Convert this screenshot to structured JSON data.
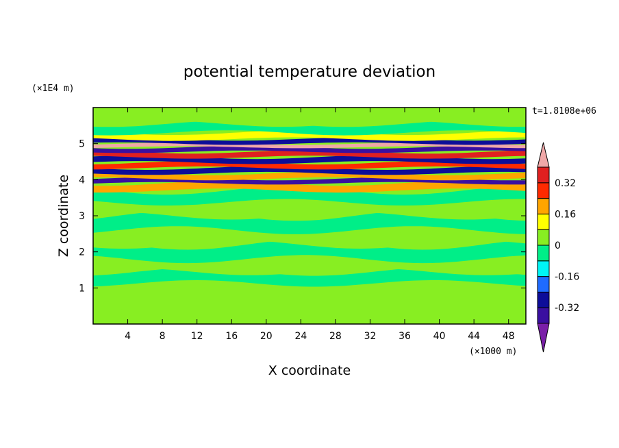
{
  "chart_data": {
    "type": "heatmap",
    "title": "potential temperature deviation",
    "xlabel": "X coordinate",
    "ylabel": "Z coordinate",
    "x_unit": "(×1000 m)",
    "y_unit": "(×1E4 m)",
    "time_label": "t=1.8108e+06",
    "xlim": [
      0,
      50
    ],
    "ylim": [
      0,
      6
    ],
    "x_ticks": [
      4,
      8,
      12,
      16,
      20,
      24,
      28,
      32,
      36,
      40,
      44,
      48
    ],
    "y_ticks": [
      1,
      2,
      3,
      4,
      5
    ],
    "colorbar": {
      "levels": [
        -0.4,
        -0.32,
        -0.24,
        -0.16,
        -0.08,
        0,
        0.08,
        0.16,
        0.24,
        0.32,
        0.4
      ],
      "labels": [
        "-0.32",
        "-0.16",
        "0",
        "0.16",
        "0.32"
      ],
      "label_values": [
        -0.32,
        -0.16,
        0,
        0.16,
        0.32
      ],
      "colors": [
        "#7a1fa8",
        "#3a0fa0",
        "#0d0d99",
        "#1f6bff",
        "#00f5f5",
        "#00ee88",
        "#88ee22",
        "#ffff00",
        "#ffa500",
        "#ff2a00",
        "#e02020",
        "#f0a8a8"
      ],
      "extend": "both"
    },
    "bands": [
      {
        "z": 0.2,
        "value": 0.02
      },
      {
        "z": 0.5,
        "value": 0.04
      },
      {
        "z": 0.95,
        "value": 0.06
      },
      {
        "z": 1.3,
        "value": -0.02
      },
      {
        "z": 1.6,
        "value": 0.04
      },
      {
        "z": 2.0,
        "value": -0.03
      },
      {
        "z": 2.4,
        "value": 0.05
      },
      {
        "z": 2.8,
        "value": -0.02
      },
      {
        "z": 3.2,
        "value": 0.06
      },
      {
        "z": 3.55,
        "value": -0.03
      },
      {
        "z": 3.85,
        "value": 0.22
      },
      {
        "z": 3.95,
        "value": -0.34
      },
      {
        "z": 4.1,
        "value": 0.18
      },
      {
        "z": 4.25,
        "value": -0.3
      },
      {
        "z": 4.4,
        "value": 0.3
      },
      {
        "z": 4.55,
        "value": -0.26
      },
      {
        "z": 4.7,
        "value": 0.36
      },
      {
        "z": 4.85,
        "value": -0.34
      },
      {
        "z": 4.95,
        "value": 0.42
      },
      {
        "z": 5.05,
        "value": -0.3
      },
      {
        "z": 5.2,
        "value": 0.12
      },
      {
        "z": 5.4,
        "value": -0.05
      },
      {
        "z": 5.7,
        "value": 0.02
      }
    ]
  }
}
